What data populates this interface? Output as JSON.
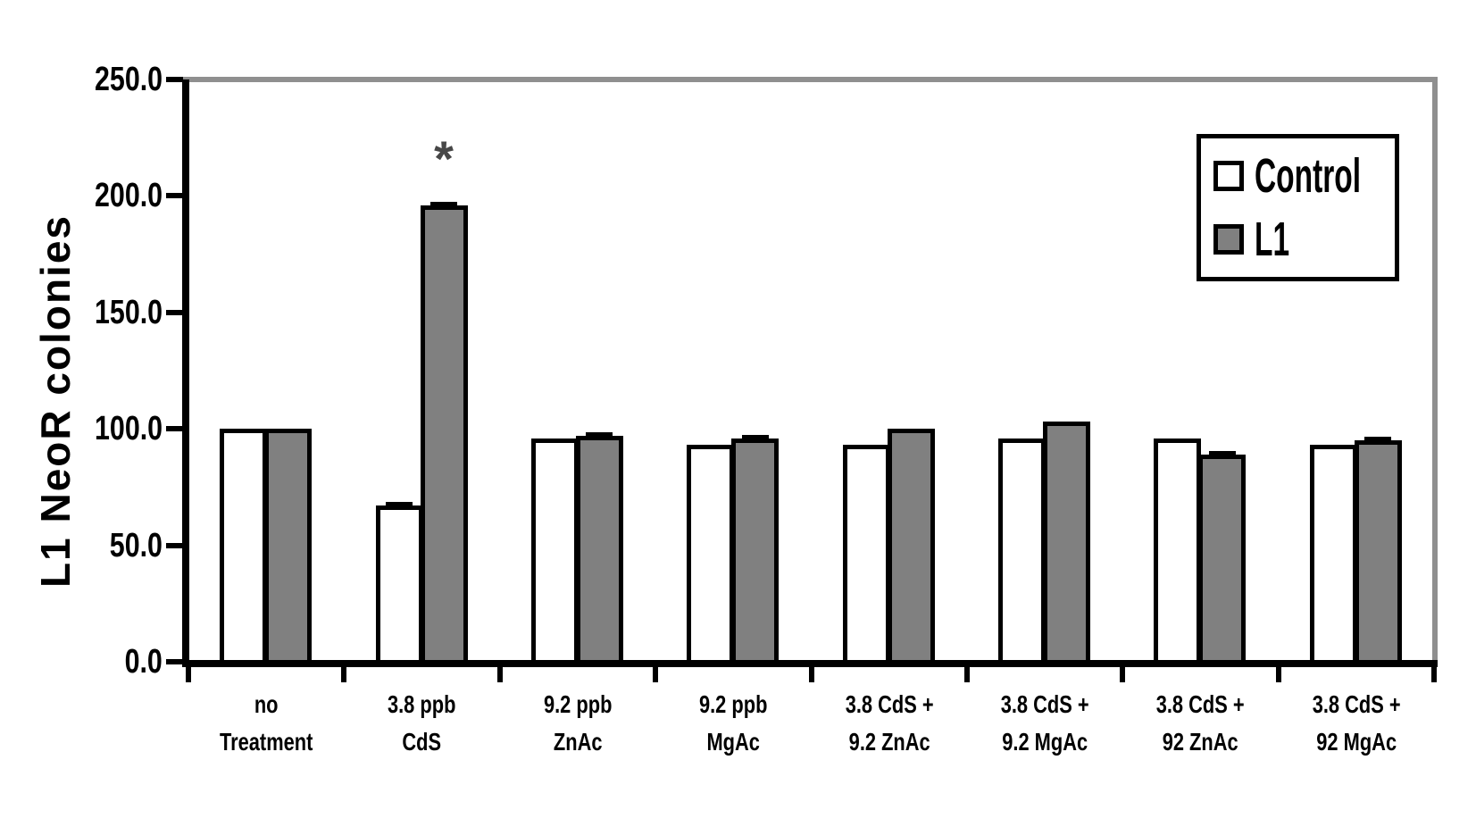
{
  "chart_data": {
    "type": "bar",
    "title": "",
    "ylabel": "L1 NeoR colonies",
    "xlabel": "",
    "ylim": [
      0,
      250
    ],
    "ytick_values": [
      0,
      50,
      100,
      150,
      200,
      250
    ],
    "ytick_labels": [
      "0.0",
      "50.0",
      "100.0",
      "150.0",
      "200.0",
      "250.0"
    ],
    "categories": [
      [
        "no",
        "Treatment"
      ],
      [
        "3.8 ppb",
        "CdS"
      ],
      [
        "9.2 ppb",
        "ZnAc"
      ],
      [
        "9.2 ppb",
        "MgAc"
      ],
      [
        "3.8 CdS +",
        "9.2 ZnAc"
      ],
      [
        "3.8 CdS +",
        "9.2 MgAc"
      ],
      [
        "3.8 CdS +",
        "92 ZnAc"
      ],
      [
        "3.8 CdS +",
        "92 MgAc"
      ]
    ],
    "series": [
      {
        "name": "Control",
        "fill": "#FFFFFF",
        "values": [
          100,
          67,
          96,
          93,
          93,
          96,
          96,
          93
        ],
        "error_caps": [
          false,
          true,
          false,
          false,
          false,
          false,
          false,
          false
        ]
      },
      {
        "name": "L1",
        "fill": "#808080",
        "values": [
          100,
          196,
          97,
          96,
          100,
          103,
          89,
          95
        ],
        "error_caps": [
          false,
          true,
          true,
          true,
          false,
          false,
          true,
          true
        ]
      }
    ],
    "annotations": [
      {
        "text": "*",
        "series_index": 1,
        "category_index": 1
      }
    ],
    "legend_position": "top-right",
    "grid": false
  },
  "colors": {
    "background": "#FFFFFF",
    "axis": "#000000",
    "plot_border": "#8F8F8F",
    "bar_border": "#000000",
    "bar_control_fill": "#FFFFFF",
    "bar_l1_fill": "#808080",
    "annotation": "#474747"
  }
}
